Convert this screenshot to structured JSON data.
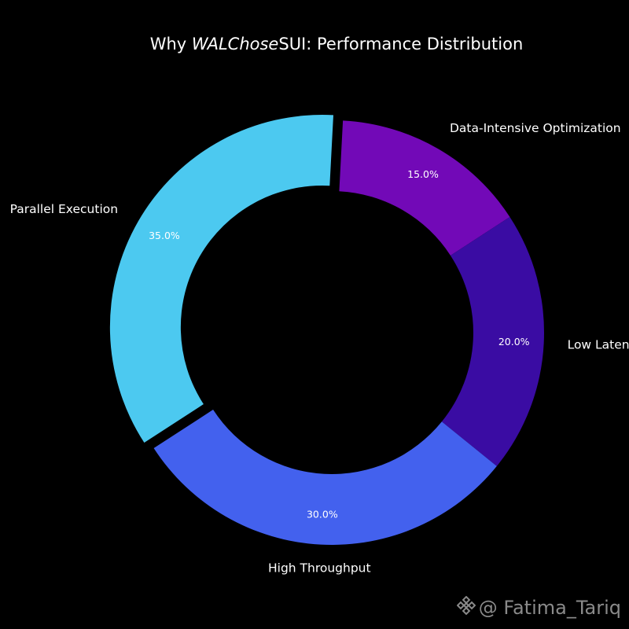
{
  "chart_data": {
    "type": "pie",
    "variant": "donut",
    "title": {
      "prefix": "Why ",
      "italic": "WALChose",
      "suffix": "SUI: Performance Distribution"
    },
    "start_angle_deg": 87,
    "direction": "clockwise",
    "exploded_category": "Parallel Execution",
    "slices": [
      {
        "label": "Data-Intensive Optimization",
        "value": 15.0,
        "pct_label": "15.0%",
        "color": "#7209b7"
      },
      {
        "label": "Low Latency",
        "value": 20.0,
        "pct_label": "20.0%",
        "color": "#3a0ca3"
      },
      {
        "label": "High Throughput",
        "value": 30.0,
        "pct_label": "30.0%",
        "color": "#4361ee"
      },
      {
        "label": "Parallel Execution",
        "value": 35.0,
        "pct_label": "35.0%",
        "color": "#4cc9f0"
      }
    ],
    "background": "#000000"
  },
  "watermark": {
    "icon": "binance-diamond-icon",
    "text": "@ Fatima_Tariq",
    "color": "#8a8a8a"
  }
}
